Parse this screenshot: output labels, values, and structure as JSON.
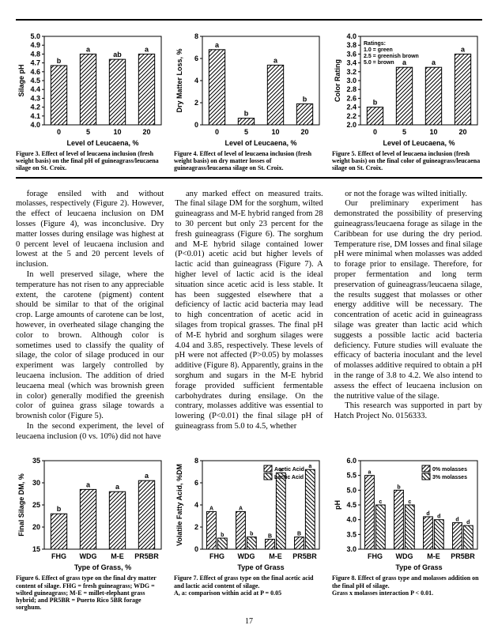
{
  "page_number": "17",
  "figures_top": [
    {
      "id": "fig3",
      "y_label": "Silage pH",
      "x_label": "Level of Leucaena, %",
      "y_min": 4.0,
      "y_max": 5.0,
      "y_step": 0.1,
      "categories": [
        "0",
        "5",
        "10",
        "20"
      ],
      "values": [
        4.67,
        4.8,
        4.74,
        4.8
      ],
      "value_labels": [
        "b",
        "a",
        "ab",
        "a"
      ],
      "caption": "Figure 3. Effect of level of leucaena inclusion (fresh weight basis) on the final pH of guineagrass/leucaena silage on St. Croix."
    },
    {
      "id": "fig4",
      "y_label": "Dry Matter Loss, %",
      "x_label": "Level of Leucaena, %",
      "y_min": 0,
      "y_max": 8,
      "y_step": 2,
      "categories": [
        "0",
        "5",
        "10",
        "20"
      ],
      "values": [
        6.8,
        0.6,
        5.4,
        1.9
      ],
      "value_labels": [
        "a",
        "b",
        "a",
        "b"
      ],
      "caption": "Figure 4. Effect of level of leucaena inclusion (fresh weight basis) on dry matter losses of guineagrass/leucaena silage on St. Croix."
    },
    {
      "id": "fig5",
      "y_label": "Color Rating",
      "x_label": "Level of Leucaena, %",
      "y_min": 2.0,
      "y_max": 4.0,
      "y_step": 0.2,
      "categories": [
        "0",
        "5",
        "10",
        "20"
      ],
      "values": [
        2.4,
        3.3,
        3.3,
        3.6
      ],
      "value_labels": [
        "b",
        "a",
        "a",
        "a"
      ],
      "ratings_box": [
        "Ratings:",
        "1.0 = green",
        "2.5 = greenish brown",
        "5.0 = brown"
      ],
      "caption": "Figure 5. Effect of level of leucaena inclusion (fresh weight basis) on the final color of guineagrass/leucaena silage on St. Croix."
    }
  ],
  "body_columns": [
    [
      "forage ensiled with and without molasses, respectively (Figure 2). However, the effect of leucaena inclusion on DM losses (Figure 4), was inconclusive. Dry matter losses during ensilage was highest at 0 percent level of leucaena inclusion and lowest at the 5 and 20 percent levels of inclusion.",
      "In well preserved silage, where the temperature has not risen to any appreciable extent, the carotene (pigment) content should be similar to that of the original crop. Large amounts of carotene can be lost, however, in overheated silage changing the color to brown. Although color is sometimes used to classify the quality of silage, the color of silage produced in our experiment was largely controlled by leucaena inclusion. The addition of dried leucaena meal (which was brownish green in color) generally modified the greenish color of guinea grass silage towards a brownish color (Figure 5).",
      "In the second experiment, the level of leucaena inclusion (0 vs. 10%) did not have"
    ],
    [
      "any marked effect on measured traits. The final silage DM for the sorghum, wilted guineagrass and M-E hybrid ranged from 28 to 30 percent but only 23 percent for the fresh guineagrass (Figure 6). The sorghum and M-E hybrid silage contained lower (P<0.01) acetic acid but higher levels of lactic acid than guineagrass (Figure 7). A higher level of lactic acid is the ideal situation since acetic acid is less stable. It has been suggested elsewhere that a deficiency of lactic acid bacteria may lead to high concentration of acetic acid in silages from tropical grasses. The final pH of M-E hybrid and sorghum silages were 4.04 and 3.85, respectively. These levels of pH were not affected (P>0.05) by molasses additive (Figure 8). Apparently, grains in the sorghum and sugars in the M-E hybrid forage provided sufficient fermentable carbohydrates during ensilage. On the contrary, molasses additive was essential to lowering (P<0.01) the final silage pH of guineagrass from 5.0 to 4.5, whether"
    ],
    [
      "or not the forage was wilted initially.",
      "Our preliminary experiment has demonstrated the possibility of preserving guineagrass/leucaena forage as silage in the Caribbean for use during the dry period. Temperature rise, DM losses and final silage pH were minimal when molasses was added to forage prior to ensilage. Therefore, for proper fermentation and long term preservation of guineagrass/leucaena silage, the results suggest that molasses or other energy additive will be necessary. The concentration of acetic acid in guineagrass silage was greater than lactic acid which suggests a possible lactic acid bacteria deficiency. Future studies will evaluate the efficacy of bacteria inoculant and the level of molasses additive required to obtain a pH in the range of 3.8 to 4.2. We also intend to assess the effect of leucaena inclusion on the nutritive value of the silage.",
      "This research was supported in part by Hatch Project No. 0156333."
    ]
  ],
  "figures_bottom": [
    {
      "id": "fig6",
      "y_label": "Final Silage DM, %",
      "x_label": "Type of Grass, %",
      "y_min": 15,
      "y_max": 35,
      "y_step": 5,
      "categories": [
        "FHG",
        "WDG",
        "M-E",
        "PR5BR"
      ],
      "values": [
        23,
        28.5,
        28,
        30.5
      ],
      "value_labels": [
        "b",
        "a",
        "a",
        "a"
      ],
      "caption": "Figure 6. Effect of grass type on the final dry matter content of silage. FHG = fresh guineagrass; WDG = wilted guineagrass; M-E = millet-elephant grass hybrid; and PR5BR = Puerto Rico 5BR forage sorghum."
    },
    {
      "id": "fig7",
      "y_label": "Volatile Fatty Acid, %DM",
      "x_label": "Type of Grass",
      "y_min": 0,
      "y_max": 8,
      "y_step": 2,
      "categories": [
        "FHG",
        "WDG",
        "M-E",
        "PR5BR"
      ],
      "legend": [
        "Acetic Acid",
        "Lactic Acid"
      ],
      "series": [
        {
          "name": "acetic",
          "values": [
            3.4,
            3.4,
            0.9,
            1.1
          ],
          "labels": [
            "A",
            "A",
            "B",
            "B"
          ],
          "pattern": "hatch"
        },
        {
          "name": "lactic",
          "values": [
            1.0,
            1.1,
            6.9,
            7.2
          ],
          "labels": [
            "b",
            "b",
            "a",
            "a"
          ],
          "pattern": "hatch2"
        }
      ],
      "footnote": "A, a: comparison within acid at P = 0.05",
      "caption": "Figure 7. Effect of grass type on the final acetic acid and lactic acid content of silage."
    },
    {
      "id": "fig8",
      "y_label": "pH",
      "x_label": "Type of Grass",
      "y_min": 3.0,
      "y_max": 6.0,
      "y_step": 0.5,
      "categories": [
        "FHG",
        "WDG",
        "M-E",
        "PR5BR"
      ],
      "legend": [
        "0% molasses",
        "3% molasses"
      ],
      "series": [
        {
          "name": "m0",
          "values": [
            5.5,
            5.0,
            4.1,
            3.9
          ],
          "labels": [
            "a",
            "b",
            "d",
            "d"
          ],
          "pattern": "hatch"
        },
        {
          "name": "m3",
          "values": [
            4.5,
            4.5,
            4.0,
            3.8
          ],
          "labels": [
            "c",
            "c",
            "d",
            "d"
          ],
          "pattern": "hatch2"
        }
      ],
      "footnote": "Grass x molasses interaction P < 0.01.",
      "caption": "Figure 8. Effect of grass type and molasses addition on the final pH of silage."
    }
  ],
  "style": {
    "bar_fill": "#ffffff",
    "hatch_color": "#000000",
    "axis_color": "#000000",
    "background": "#ffffff",
    "font": "Arial"
  }
}
